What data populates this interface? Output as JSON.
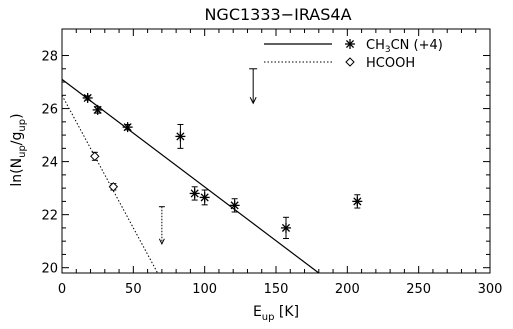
{
  "chart_data": {
    "type": "scatter",
    "title": "NGC1333−IRAS4A",
    "xlabel": {
      "base": "E",
      "sub": "up",
      "unit": " [K]"
    },
    "ylabel": {
      "pre": "ln(N",
      "sub1": "up",
      "mid": "/g",
      "sub2": "up",
      "post": ")"
    },
    "xlim": [
      0,
      300
    ],
    "ylim": [
      19.8,
      29
    ],
    "xticks": [
      0,
      50,
      100,
      150,
      200,
      250,
      300
    ],
    "yticks": [
      20,
      22,
      24,
      26,
      28
    ],
    "legend": {
      "placement": "top-right",
      "ch3cn_label": {
        "a": "CH",
        "sub": "3",
        "b": "CN (+4)"
      },
      "hcooh_label": "HCOOH"
    },
    "series": [
      {
        "name": "CH3CN (+4)",
        "marker": "asterisk",
        "points": [
          {
            "x": 18,
            "y": 26.4,
            "err": 0.08
          },
          {
            "x": 25,
            "y": 25.95,
            "err": 0.12
          },
          {
            "x": 46,
            "y": 25.3,
            "err": 0.1
          },
          {
            "x": 83,
            "y": 24.95,
            "err": 0.45
          },
          {
            "x": 93,
            "y": 22.8,
            "err": 0.25
          },
          {
            "x": 100,
            "y": 22.65,
            "err": 0.28
          },
          {
            "x": 121,
            "y": 22.35,
            "err": 0.25
          },
          {
            "x": 157,
            "y": 21.5,
            "err": 0.4
          },
          {
            "x": 207,
            "y": 22.5,
            "err": 0.25
          }
        ],
        "upper_limit": {
          "x": 134,
          "from": 27.5,
          "to": 26.2
        },
        "fit": {
          "x0": 0,
          "y0": 27.1,
          "x1": 180,
          "y1": 19.8
        }
      },
      {
        "name": "HCOOH",
        "marker": "diamond",
        "points": [
          {
            "x": 23,
            "y": 24.2,
            "err": 0.15
          },
          {
            "x": 36,
            "y": 23.05,
            "err": 0.12
          }
        ],
        "upper_limit": {
          "x": 70,
          "from": 22.3,
          "to": 20.9
        },
        "fit": {
          "x0": 0,
          "y0": 26.5,
          "x1": 67,
          "y1": 19.8
        }
      }
    ]
  }
}
